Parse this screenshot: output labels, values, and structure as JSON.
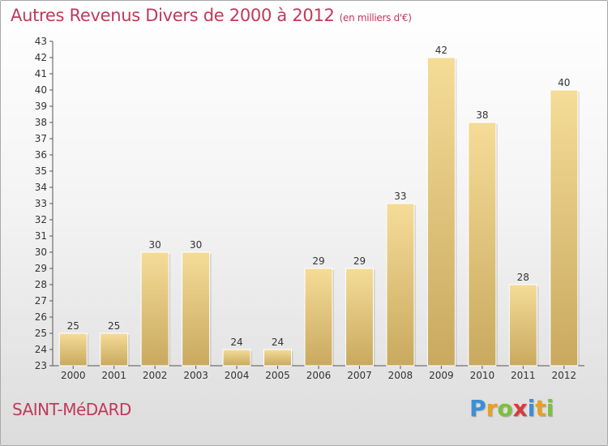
{
  "header": {
    "title": "Autres Revenus Divers de 2000 à 2012",
    "unit": "(en milliers d'€)"
  },
  "footer": {
    "city": "SAINT-MéDARD",
    "logo_letters": [
      "P",
      "r",
      "o",
      "x",
      "i",
      "t",
      "i"
    ],
    "logo_colors": [
      "#3b8fd6",
      "#e8a020",
      "#7fbf3f",
      "#d93a3a",
      "#3b8fd6",
      "#e8a020",
      "#7fbf3f"
    ]
  },
  "colors": {
    "bar_light": "#f5dc97",
    "bar_dark": "#c9a95f",
    "title": "#c0395a"
  },
  "chart_data": {
    "type": "bar",
    "title": "Autres Revenus Divers de 2000 à 2012",
    "xlabel": "",
    "ylabel": "",
    "categories": [
      "2000",
      "2001",
      "2002",
      "2003",
      "2004",
      "2005",
      "2006",
      "2007",
      "2008",
      "2009",
      "2010",
      "2011",
      "2012"
    ],
    "values": [
      25,
      25,
      30,
      30,
      24,
      24,
      29,
      29,
      33,
      42,
      38,
      28,
      40
    ],
    "ylim": [
      23,
      43
    ],
    "yticks": [
      23,
      24,
      25,
      26,
      27,
      28,
      29,
      30,
      31,
      32,
      33,
      34,
      35,
      36,
      37,
      38,
      39,
      40,
      41,
      42,
      43
    ],
    "grid": false,
    "legend": "none",
    "data_labels": true
  }
}
